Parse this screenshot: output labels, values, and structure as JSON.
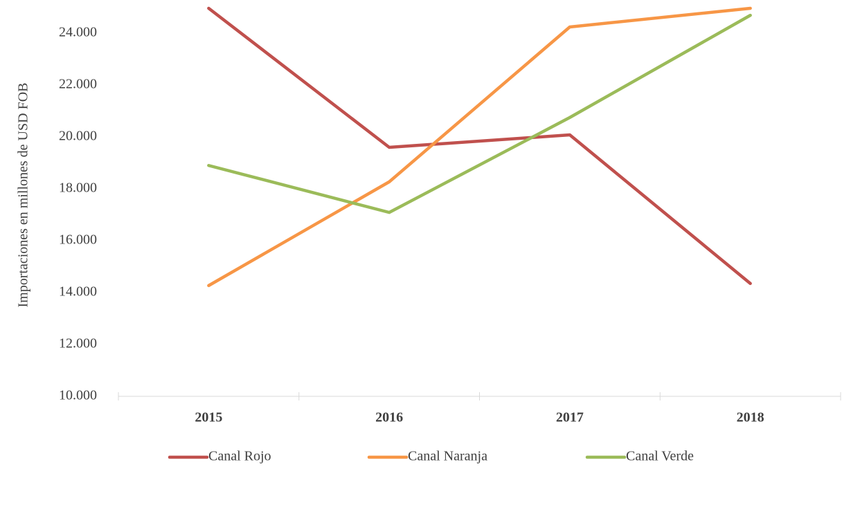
{
  "chart_data": {
    "type": "line",
    "y_label": "Importaciones en millones de USD FOB",
    "categories": [
      "2015",
      "2016",
      "2017",
      "2018"
    ],
    "series": [
      {
        "name": "Canal Rojo",
        "color": "#c0504d",
        "values": [
          24960,
          19600,
          20080,
          14350
        ]
      },
      {
        "name": "Canal Naranja",
        "color": "#f79646",
        "values": [
          14270,
          18270,
          24240,
          24960
        ]
      },
      {
        "name": "Canal Verde",
        "color": "#9bbb59",
        "values": [
          18900,
          17090,
          20750,
          24690
        ]
      }
    ],
    "ylim": [
      10000,
      26000
    ],
    "yticks": [
      {
        "value": 10000,
        "label": "10.000"
      },
      {
        "value": 12000,
        "label": "12.000"
      },
      {
        "value": 14000,
        "label": "14.000"
      },
      {
        "value": 16000,
        "label": "16.000"
      },
      {
        "value": 18000,
        "label": "18.000"
      },
      {
        "value": 20000,
        "label": "20.000"
      },
      {
        "value": 22000,
        "label": "22.000"
      },
      {
        "value": 24000,
        "label": "24.000"
      }
    ],
    "legend": "bottom"
  }
}
